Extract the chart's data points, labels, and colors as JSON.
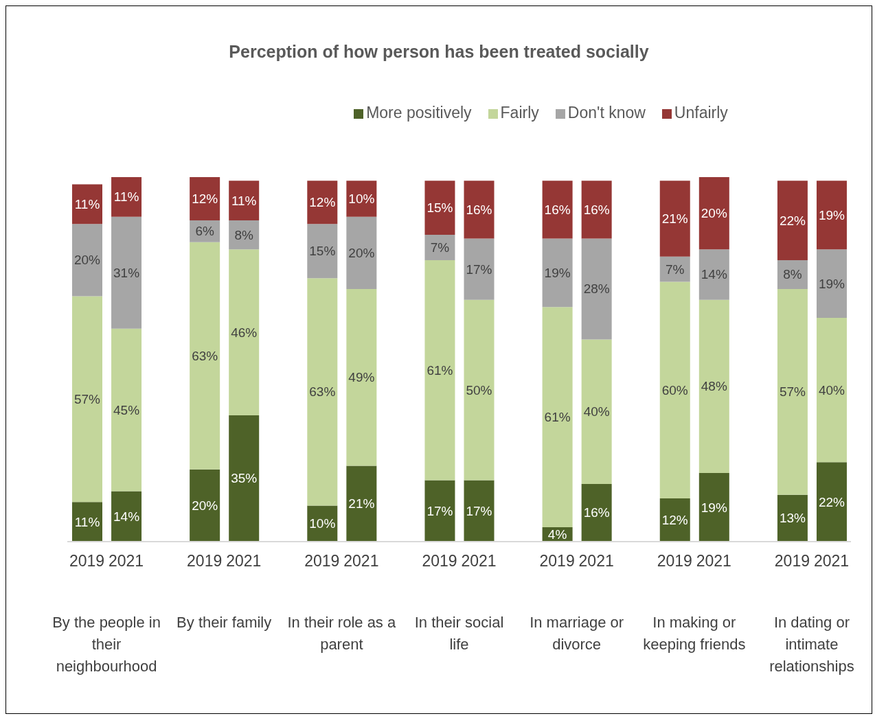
{
  "chart_data": {
    "type": "bar",
    "stacked": true,
    "title": "Perception of how person has been treated socially",
    "categories": [
      "2019",
      "2021",
      "2019",
      "2021",
      "2019",
      "2021",
      "2019",
      "2021",
      "2019",
      "2021",
      "2019",
      "2021",
      "2019",
      "2021"
    ],
    "series": [
      {
        "name": "More positively",
        "color": "#4e6228",
        "values": [
          11,
          14,
          20,
          35,
          10,
          21,
          17,
          17,
          4,
          16,
          12,
          19,
          13,
          22
        ],
        "value_labels": [
          "11%",
          "14%",
          "20%",
          "35%",
          "10%",
          "21%",
          "17%",
          "17%",
          "4%",
          "16%",
          "12%",
          "19%",
          "13%",
          "22%"
        ]
      },
      {
        "name": "Fairly",
        "color": "#c3d69b",
        "values": [
          57,
          45,
          63,
          46,
          63,
          49,
          61,
          50,
          61,
          40,
          60,
          48,
          57,
          40
        ],
        "value_labels": [
          "57%",
          "45%",
          "63%",
          "46%",
          "63%",
          "49%",
          "61%",
          "50%",
          "61%",
          "40%",
          "60%",
          "48%",
          "57%",
          "40%"
        ]
      },
      {
        "name": "Don't know",
        "color": "#a6a6a6",
        "values": [
          20,
          31,
          6,
          8,
          15,
          20,
          7,
          17,
          19,
          28,
          7,
          14,
          8,
          19
        ],
        "value_labels": [
          "20%",
          "31%",
          "6%",
          "8%",
          "15%",
          "20%",
          "7%",
          "17%",
          "19%",
          "28%",
          "7%",
          "14%",
          "8%",
          "19%"
        ]
      },
      {
        "name": "Unfairly",
        "color": "#953735",
        "values": [
          11,
          11,
          12,
          11,
          12,
          10,
          15,
          16,
          16,
          16,
          21,
          20,
          22,
          19
        ],
        "value_labels": [
          "11%",
          "11%",
          "12%",
          "11%",
          "12%",
          "10%",
          "15%",
          "16%",
          "16%",
          "16%",
          "21%",
          "20%",
          "22%",
          "19%"
        ]
      }
    ],
    "annotations": [
      "By the people in their neighbourhood",
      "By their family",
      "In their role as a parent",
      "In their social life",
      "In marriage or divorce",
      "In making or keeping friends",
      "In dating or intimate relationships"
    ],
    "legend": "top",
    "tick_labels": "x"
  }
}
